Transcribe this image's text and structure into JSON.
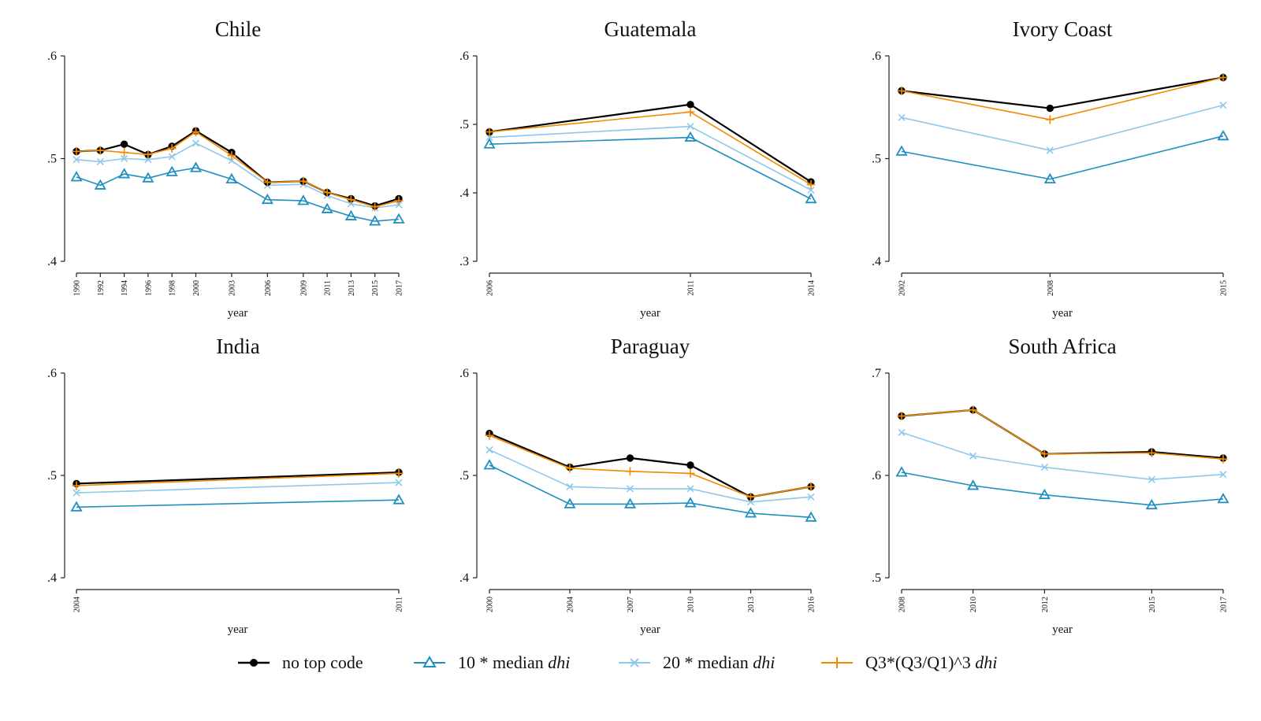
{
  "chart_data": [
    {
      "type": "line",
      "title": "Chile",
      "xlabel": "year",
      "ylabel": "",
      "ylim": [
        0.4,
        0.6
      ],
      "yticks": [
        ".4",
        ".5",
        ".6"
      ],
      "x": [
        "1990",
        "1992",
        "1994",
        "1996",
        "1998",
        "2000",
        "2003",
        "2006",
        "2009",
        "2011",
        "2013",
        "2015",
        "2017"
      ],
      "series": [
        {
          "name": "no top code",
          "values": [
            0.507,
            0.508,
            0.514,
            0.504,
            0.512,
            0.527,
            0.506,
            0.477,
            0.478,
            0.467,
            0.461,
            0.454,
            0.461
          ]
        },
        {
          "name": "10 * median dhi",
          "values": [
            0.482,
            0.474,
            0.485,
            0.481,
            0.487,
            0.491,
            0.48,
            0.46,
            0.459,
            0.451,
            0.444,
            0.439,
            0.441
          ]
        },
        {
          "name": "20 * median dhi",
          "values": [
            0.499,
            0.497,
            0.5,
            0.499,
            0.502,
            0.515,
            0.498,
            0.474,
            0.475,
            0.464,
            0.456,
            0.452,
            0.455
          ]
        },
        {
          "name": "Q3*(Q3/Q1)^3 dhi",
          "values": [
            0.507,
            0.508,
            0.506,
            0.504,
            0.51,
            0.526,
            0.503,
            0.477,
            0.478,
            0.467,
            0.46,
            0.453,
            0.459
          ]
        }
      ]
    },
    {
      "type": "line",
      "title": "Guatemala",
      "xlabel": "year",
      "ylabel": "",
      "ylim": [
        0.3,
        0.6
      ],
      "yticks": [
        ".3",
        ".4",
        ".5",
        ".6"
      ],
      "x": [
        "2006",
        "2011",
        "2014"
      ],
      "series": [
        {
          "name": "no top code",
          "values": [
            0.489,
            0.529,
            0.416
          ]
        },
        {
          "name": "10 * median dhi",
          "values": [
            0.471,
            0.481,
            0.391
          ]
        },
        {
          "name": "20 * median dhi",
          "values": [
            0.481,
            0.497,
            0.404
          ]
        },
        {
          "name": "Q3*(Q3/Q1)^3 dhi",
          "values": [
            0.489,
            0.518,
            0.412
          ]
        }
      ]
    },
    {
      "type": "line",
      "title": "Ivory Coast",
      "xlabel": "year",
      "ylabel": "",
      "ylim": [
        0.4,
        0.6
      ],
      "yticks": [
        ".4",
        ".5",
        ".6"
      ],
      "x": [
        "2002",
        "2008",
        "2015"
      ],
      "series": [
        {
          "name": "no top code",
          "values": [
            0.566,
            0.549,
            0.579
          ]
        },
        {
          "name": "10 * median dhi",
          "values": [
            0.507,
            0.48,
            0.522
          ]
        },
        {
          "name": "20 * median dhi",
          "values": [
            0.54,
            0.508,
            0.552
          ]
        },
        {
          "name": "Q3*(Q3/Q1)^3 dhi",
          "values": [
            0.566,
            0.538,
            0.579
          ]
        }
      ]
    },
    {
      "type": "line",
      "title": "India",
      "xlabel": "year",
      "ylabel": "",
      "ylim": [
        0.4,
        0.6
      ],
      "yticks": [
        ".4",
        ".5",
        ".6"
      ],
      "x": [
        "2004",
        "2011"
      ],
      "series": [
        {
          "name": "no top code",
          "values": [
            0.492,
            0.503
          ]
        },
        {
          "name": "10 * median dhi",
          "values": [
            0.469,
            0.476
          ]
        },
        {
          "name": "20 * median dhi",
          "values": [
            0.483,
            0.493
          ]
        },
        {
          "name": "Q3*(Q3/Q1)^3 dhi",
          "values": [
            0.49,
            0.502
          ]
        }
      ]
    },
    {
      "type": "line",
      "title": "Paraguay",
      "xlabel": "year",
      "ylabel": "",
      "ylim": [
        0.4,
        0.6
      ],
      "yticks": [
        ".4",
        ".5",
        ".6"
      ],
      "x": [
        "2000",
        "2004",
        "2007",
        "2010",
        "2013",
        "2016"
      ],
      "series": [
        {
          "name": "no top code",
          "values": [
            0.541,
            0.508,
            0.517,
            0.51,
            0.479,
            0.489
          ]
        },
        {
          "name": "10 * median dhi",
          "values": [
            0.51,
            0.472,
            0.472,
            0.473,
            0.463,
            0.459
          ]
        },
        {
          "name": "20 * median dhi",
          "values": [
            0.525,
            0.489,
            0.487,
            0.487,
            0.474,
            0.479
          ]
        },
        {
          "name": "Q3*(Q3/Q1)^3 dhi",
          "values": [
            0.539,
            0.507,
            0.504,
            0.502,
            0.479,
            0.489
          ]
        }
      ]
    },
    {
      "type": "line",
      "title": "South Africa",
      "xlabel": "year",
      "ylabel": "",
      "ylim": [
        0.5,
        0.7
      ],
      "yticks": [
        ".5",
        ".6",
        ".7"
      ],
      "x": [
        "2008",
        "2010",
        "2012",
        "2015",
        "2017"
      ],
      "series": [
        {
          "name": "no top code",
          "values": [
            0.658,
            0.664,
            0.621,
            0.623,
            0.617
          ]
        },
        {
          "name": "10 * median dhi",
          "values": [
            0.603,
            0.59,
            0.581,
            0.571,
            0.577
          ]
        },
        {
          "name": "20 * median dhi",
          "values": [
            0.642,
            0.619,
            0.608,
            0.596,
            0.601
          ]
        },
        {
          "name": "Q3*(Q3/Q1)^3 dhi",
          "values": [
            0.658,
            0.664,
            0.621,
            0.622,
            0.616
          ]
        }
      ]
    }
  ],
  "legend": [
    {
      "text": "no top code",
      "italic": "",
      "color": "#000000",
      "marker": "circle"
    },
    {
      "text": "10 * median ",
      "italic": "dhi",
      "color": "#1f8fbf",
      "marker": "triangle"
    },
    {
      "text": "20 * median ",
      "italic": "dhi",
      "color": "#8ec8ec",
      "marker": "x"
    },
    {
      "text": "Q3*(Q3/Q1)^3 ",
      "italic": "dhi",
      "color": "#f08a00",
      "marker": "plus"
    }
  ],
  "series_styles": [
    {
      "color": "#000000",
      "marker": "circle"
    },
    {
      "color": "#1f8fbf",
      "marker": "triangle"
    },
    {
      "color": "#8ec8ec",
      "marker": "x"
    },
    {
      "color": "#f08a00",
      "marker": "plus"
    }
  ]
}
